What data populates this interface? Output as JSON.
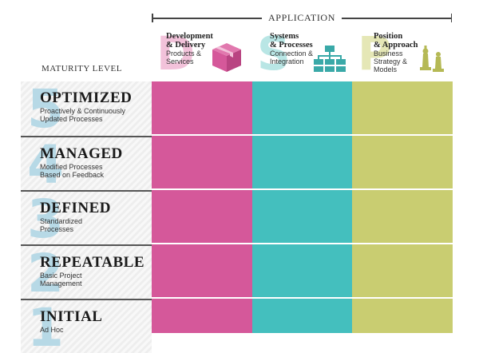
{
  "header": {
    "application_label": "APPLICATION",
    "maturity_label": "MATURITY LEVEL"
  },
  "columns": [
    {
      "letter": "D",
      "title_lines": [
        "Development",
        "& Delivery"
      ],
      "subtitle_lines": [
        "Products &",
        "Services"
      ],
      "color": "#d5589a",
      "letter_color": "#f2c2da",
      "icon": "package-icon"
    },
    {
      "letter": "S",
      "title_lines": [
        "Systems",
        "& Processes"
      ],
      "subtitle_lines": [
        "Connection &",
        "Integration"
      ],
      "color": "#44bfbe",
      "letter_color": "#b9e6e5",
      "icon": "org-chart-icon"
    },
    {
      "letter": "P",
      "title_lines": [
        "Position",
        "& Approach"
      ],
      "subtitle_lines": [
        "Business",
        "Strategy &",
        "Models"
      ],
      "color": "#c9cd71",
      "letter_color": "#e5e7b6",
      "icon": "chess-pieces-icon"
    }
  ],
  "levels": [
    {
      "number": "5",
      "name": "OPTIMIZED",
      "desc_lines": [
        "Proactively & Continuously",
        "Updated Processes"
      ]
    },
    {
      "number": "4",
      "name": "MANAGED",
      "desc_lines": [
        "Modified Processes",
        "Based on Feedback"
      ]
    },
    {
      "number": "3",
      "name": "DEFINED",
      "desc_lines": [
        "Standardized",
        "Processes"
      ]
    },
    {
      "number": "2",
      "name": "REPEATABLE",
      "desc_lines": [
        "Basic Project",
        "Management"
      ]
    },
    {
      "number": "1",
      "name": "INITIAL",
      "desc_lines": [
        "Ad Hoc"
      ]
    }
  ]
}
